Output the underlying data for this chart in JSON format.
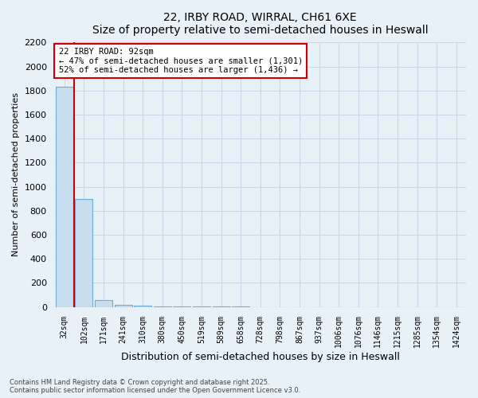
{
  "title": "22, IRBY ROAD, WIRRAL, CH61 6XE",
  "subtitle": "Size of property relative to semi-detached houses in Heswall",
  "xlabel": "Distribution of semi-detached houses by size in Heswall",
  "ylabel": "Number of semi-detached properties",
  "annotation_line1": "22 IRBY ROAD: 92sqm",
  "annotation_line2": "← 47% of semi-detached houses are smaller (1,301)",
  "annotation_line3": "52% of semi-detached houses are larger (1,436) →",
  "footer_line1": "Contains HM Land Registry data © Crown copyright and database right 2025.",
  "footer_line2": "Contains public sector information licensed under the Open Government Licence v3.0.",
  "ylim": [
    0,
    2200
  ],
  "bar_color": "#c8dded",
  "bar_edge_color": "#6aaed6",
  "annotation_box_color": "#ffffff",
  "annotation_box_edge": "#cc0000",
  "vline_color": "#cc0000",
  "grid_color": "#c8d8e8",
  "background_color": "#e8f0f8",
  "categories": [
    "32sqm",
    "102sqm",
    "171sqm",
    "241sqm",
    "310sqm",
    "380sqm",
    "450sqm",
    "519sqm",
    "589sqm",
    "658sqm",
    "728sqm",
    "798sqm",
    "867sqm",
    "937sqm",
    "1006sqm",
    "1076sqm",
    "1146sqm",
    "1215sqm",
    "1285sqm",
    "1354sqm",
    "1424sqm"
  ],
  "values": [
    1830,
    900,
    55,
    20,
    8,
    5,
    3,
    2,
    1,
    1,
    0,
    0,
    0,
    0,
    0,
    0,
    0,
    0,
    0,
    0,
    0
  ],
  "yticks": [
    0,
    200,
    400,
    600,
    800,
    1000,
    1200,
    1400,
    1600,
    1800,
    2000,
    2200
  ],
  "vline_x_index": 1.0
}
